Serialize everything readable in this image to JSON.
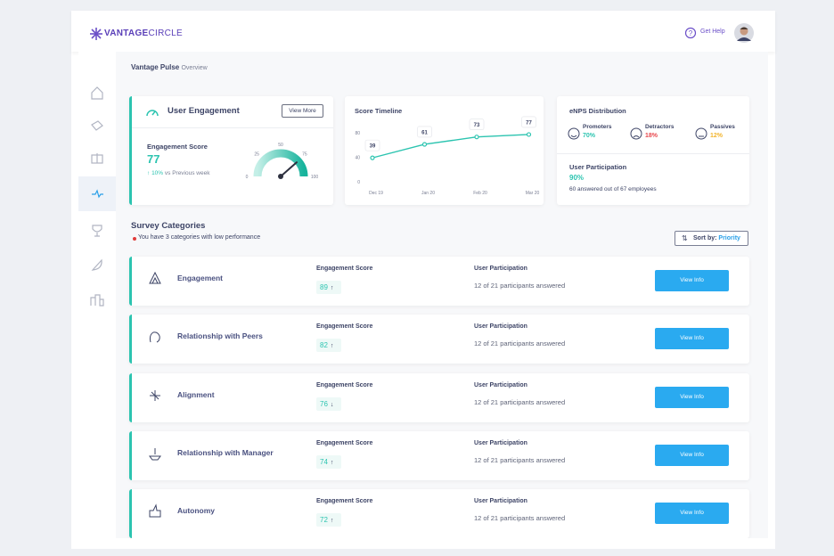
{
  "header": {
    "logo_bold": "VANTAGE",
    "logo_light": "CIRCLE",
    "help": "Get Help"
  },
  "breadcrumb": {
    "section": "Vantage Pulse",
    "page": "Overview"
  },
  "engagement_card": {
    "title": "User Engagement",
    "button": "View More",
    "score_label": "Engagement Score",
    "score": 77,
    "change_arrow": "↑",
    "change": "10%",
    "change_text": "vs Previous week",
    "gauge_range": [
      0,
      100
    ],
    "gauge_ticks": [
      0,
      25,
      50,
      75,
      100
    ]
  },
  "timeline": {
    "type": "line",
    "title": "Score Timeline",
    "categories": [
      "Dec 19",
      "Jan 20",
      "Feb 20",
      "Mar 20"
    ],
    "values": [
      39,
      61,
      73,
      77
    ],
    "color": "#2cc4b0",
    "ylim": [
      0,
      90
    ],
    "yticks": [
      0,
      40,
      80
    ]
  },
  "enps": {
    "title": "eNPS Distribution",
    "items": [
      {
        "label": "Promoters",
        "value": "70%",
        "color": "#2cc4b0"
      },
      {
        "label": "Detractors",
        "value": "18%",
        "color": "#e8484e"
      },
      {
        "label": "Passives",
        "value": "12%",
        "color": "#f2b42c"
      }
    ],
    "participation_label": "User Participation",
    "participation": "90%",
    "participation_text": "60 answered out of 67 employees"
  },
  "survey": {
    "title": "Survey Categories",
    "alert": "You have 3 categories with low performance",
    "sort_label": "Sort by:",
    "sort_value": "Priority",
    "score_label": "Engagement Score",
    "participation_label": "User Participation",
    "button": "View Info",
    "categories": [
      {
        "name": "Engagement",
        "score": 89,
        "trend": "↑",
        "participation": "12 of 21 participants answered"
      },
      {
        "name": "Relationship with Peers",
        "score": 82,
        "trend": "↑",
        "participation": "12 of 21 participants answered"
      },
      {
        "name": "Alignment",
        "score": 76,
        "trend": "↓",
        "participation": "12 of 21 participants answered"
      },
      {
        "name": "Relationship with Manager",
        "score": 74,
        "trend": "↑",
        "participation": "12 of 21 participants answered"
      },
      {
        "name": "Autonomy",
        "score": 72,
        "trend": "↑",
        "participation": "12 of 21 participants answered"
      }
    ]
  }
}
